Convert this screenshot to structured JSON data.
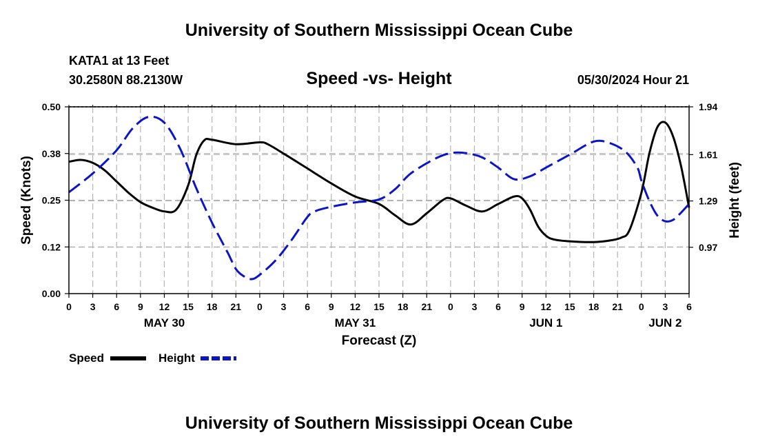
{
  "header": {
    "title": "University of Southern Mississippi Ocean Cube",
    "station": "KATA1 at 13 Feet",
    "coords": "30.2580N  88.2130W",
    "chart_title": "Speed -vs- Height",
    "timestamp": "05/30/2024 Hour 21"
  },
  "footer": {
    "title": "University of Southern Mississippi Ocean Cube"
  },
  "colors": {
    "speed": "#000000",
    "height": "#0a14c8",
    "grid": "#b4b4b4"
  },
  "chart_data": {
    "type": "line",
    "title": "Speed -vs- Height",
    "xlabel": "Forecast (Z)",
    "ylabel": "Speed (Knots)",
    "y2label": "Height (feet)",
    "x_unit": "hours from May 30 00Z",
    "xlim": [
      0,
      78
    ],
    "ylim": [
      0,
      0.5
    ],
    "y2lim": [
      0.65,
      1.94
    ],
    "x_ticks": [
      {
        "x": 0,
        "label": "0"
      },
      {
        "x": 3,
        "label": "3"
      },
      {
        "x": 6,
        "label": "6"
      },
      {
        "x": 9,
        "label": "9"
      },
      {
        "x": 12,
        "label": "12"
      },
      {
        "x": 15,
        "label": "15"
      },
      {
        "x": 18,
        "label": "18"
      },
      {
        "x": 21,
        "label": "21"
      },
      {
        "x": 24,
        "label": "0"
      },
      {
        "x": 27,
        "label": "3"
      },
      {
        "x": 30,
        "label": "6"
      },
      {
        "x": 33,
        "label": "9"
      },
      {
        "x": 36,
        "label": "12"
      },
      {
        "x": 39,
        "label": "15"
      },
      {
        "x": 42,
        "label": "18"
      },
      {
        "x": 45,
        "label": "21"
      },
      {
        "x": 48,
        "label": "0"
      },
      {
        "x": 51,
        "label": "3"
      },
      {
        "x": 54,
        "label": "6"
      },
      {
        "x": 57,
        "label": "9"
      },
      {
        "x": 60,
        "label": "12"
      },
      {
        "x": 63,
        "label": "15"
      },
      {
        "x": 66,
        "label": "18"
      },
      {
        "x": 69,
        "label": "21"
      },
      {
        "x": 72,
        "label": "0"
      },
      {
        "x": 75,
        "label": "3"
      },
      {
        "x": 78,
        "label": "6"
      }
    ],
    "date_labels": [
      {
        "x": 12,
        "label": "MAY 30"
      },
      {
        "x": 36,
        "label": "MAY 31"
      },
      {
        "x": 60,
        "label": "JUN 1"
      },
      {
        "x": 75,
        "label": "JUN 2"
      }
    ],
    "y_ticks": [
      {
        "v": 0.0,
        "label": "0.00"
      },
      {
        "v": 0.125,
        "label": "0.12"
      },
      {
        "v": 0.25,
        "label": "0.25"
      },
      {
        "v": 0.375,
        "label": "0.38"
      },
      {
        "v": 0.5,
        "label": "0.50"
      }
    ],
    "y2_ticks": [
      {
        "v": 0.97,
        "label": "0.97"
      },
      {
        "v": 1.29,
        "label": "1.29"
      },
      {
        "v": 1.61,
        "label": "1.61"
      },
      {
        "v": 1.94,
        "label": "1.94"
      }
    ],
    "legend": {
      "position": "bottom-left",
      "entries": [
        "Speed",
        "Height"
      ]
    },
    "series": [
      {
        "name": "Speed",
        "axis": "left",
        "style": "solid",
        "points": [
          [
            0,
            0.353
          ],
          [
            1.5,
            0.358
          ],
          [
            3,
            0.35
          ],
          [
            4.5,
            0.33
          ],
          [
            6,
            0.3
          ],
          [
            7.5,
            0.27
          ],
          [
            9,
            0.245
          ],
          [
            10.5,
            0.23
          ],
          [
            12,
            0.22
          ],
          [
            13.5,
            0.225
          ],
          [
            15,
            0.29
          ],
          [
            16,
            0.37
          ],
          [
            17,
            0.41
          ],
          [
            18,
            0.412
          ],
          [
            21,
            0.4
          ],
          [
            24,
            0.405
          ],
          [
            25,
            0.4
          ],
          [
            27,
            0.375
          ],
          [
            30,
            0.335
          ],
          [
            33,
            0.295
          ],
          [
            36,
            0.26
          ],
          [
            39,
            0.24
          ],
          [
            41,
            0.21
          ],
          [
            43,
            0.185
          ],
          [
            45,
            0.215
          ],
          [
            47,
            0.25
          ],
          [
            48,
            0.255
          ],
          [
            50,
            0.235
          ],
          [
            52,
            0.22
          ],
          [
            54,
            0.24
          ],
          [
            56,
            0.26
          ],
          [
            57,
            0.255
          ],
          [
            58,
            0.225
          ],
          [
            59,
            0.18
          ],
          [
            60,
            0.155
          ],
          [
            61,
            0.145
          ],
          [
            63,
            0.14
          ],
          [
            66,
            0.138
          ],
          [
            68,
            0.142
          ],
          [
            69.5,
            0.15
          ],
          [
            70.5,
            0.17
          ],
          [
            72,
            0.27
          ],
          [
            73,
            0.375
          ],
          [
            74,
            0.445
          ],
          [
            75,
            0.458
          ],
          [
            76,
            0.42
          ],
          [
            77,
            0.34
          ],
          [
            78,
            0.23
          ]
        ]
      },
      {
        "name": "Height",
        "axis": "right",
        "style": "dashed",
        "points": [
          [
            0,
            1.35
          ],
          [
            3,
            1.48
          ],
          [
            6,
            1.64
          ],
          [
            8,
            1.79
          ],
          [
            10,
            1.87
          ],
          [
            12,
            1.83
          ],
          [
            14,
            1.65
          ],
          [
            16,
            1.38
          ],
          [
            18,
            1.14
          ],
          [
            20,
            0.93
          ],
          [
            21,
            0.82
          ],
          [
            22,
            0.77
          ],
          [
            23,
            0.75
          ],
          [
            24,
            0.78
          ],
          [
            26,
            0.88
          ],
          [
            28,
            1.02
          ],
          [
            30,
            1.18
          ],
          [
            31,
            1.22
          ],
          [
            33,
            1.25
          ],
          [
            36,
            1.28
          ],
          [
            39,
            1.3
          ],
          [
            41,
            1.37
          ],
          [
            43,
            1.48
          ],
          [
            46,
            1.58
          ],
          [
            48,
            1.62
          ],
          [
            50,
            1.62
          ],
          [
            52,
            1.59
          ],
          [
            54,
            1.52
          ],
          [
            56,
            1.44
          ],
          [
            58,
            1.46
          ],
          [
            60,
            1.52
          ],
          [
            63,
            1.61
          ],
          [
            66,
            1.7
          ],
          [
            68,
            1.69
          ],
          [
            70,
            1.63
          ],
          [
            71.5,
            1.52
          ],
          [
            72,
            1.43
          ],
          [
            73,
            1.29
          ],
          [
            74,
            1.19
          ],
          [
            75,
            1.15
          ],
          [
            76,
            1.16
          ],
          [
            77,
            1.21
          ],
          [
            78,
            1.27
          ]
        ]
      }
    ]
  }
}
